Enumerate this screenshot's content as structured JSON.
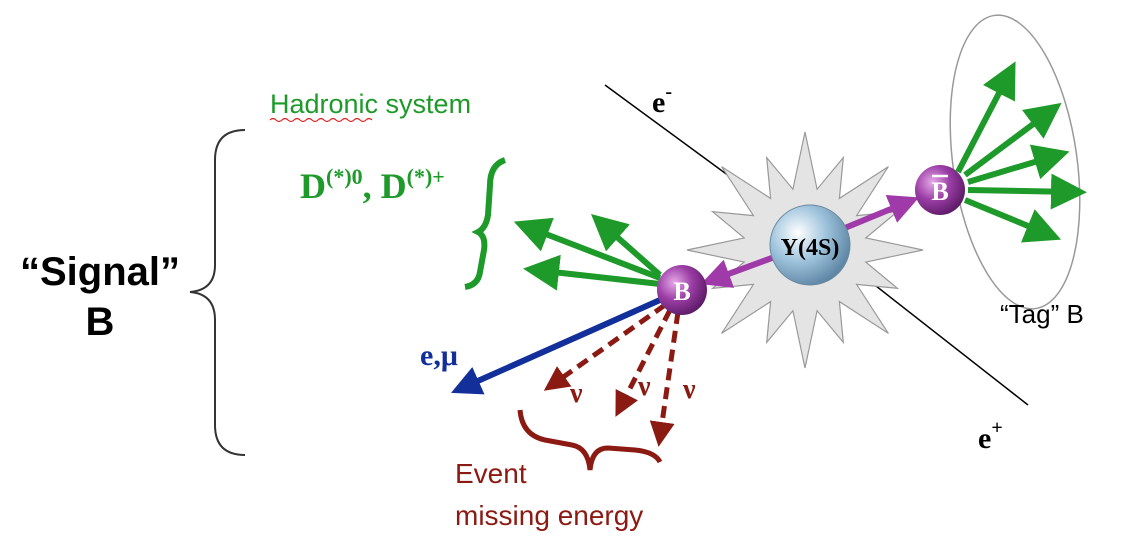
{
  "signal_b": {
    "line1": "“Signal”",
    "line2": "B"
  },
  "hadronic": {
    "title": "Hadronic system",
    "d0": "D",
    "d0_sup": "(*)0",
    "dplus": ", D",
    "dplus_sup": "(*)+"
  },
  "beams": {
    "electron": "e",
    "electron_sup": "-",
    "positron": "e",
    "positron_sup": "+"
  },
  "particles": {
    "upsilon": "Υ(4S)",
    "b_signal": "B",
    "b_tag": "B"
  },
  "tag_label": "“Tag” B",
  "lepton": "e,μ",
  "neutrinos": [
    "ν",
    "ν",
    "ν"
  ],
  "missing_energy": {
    "line1": "Event",
    "line2": "missing energy"
  }
}
